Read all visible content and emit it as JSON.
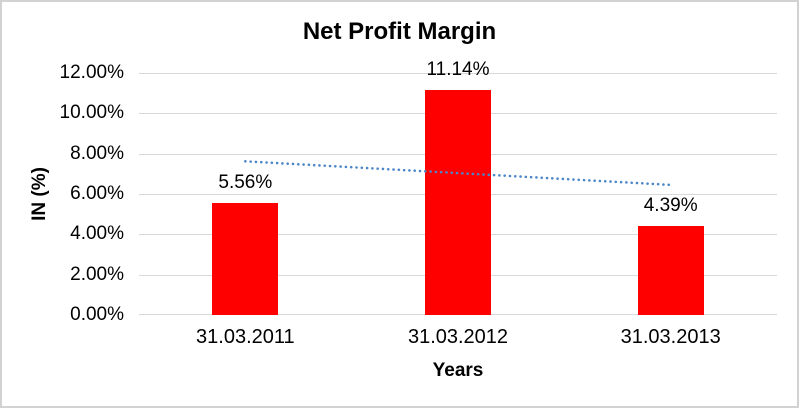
{
  "window": {
    "background": "#ffffff",
    "border_color": "#d2d2d2"
  },
  "chart_data": {
    "type": "bar",
    "title": "Net Profit Margin",
    "xlabel": "Years",
    "ylabel": "IN (%)",
    "categories": [
      "31.03.2011",
      "31.03.2012",
      "31.03.2013"
    ],
    "values": [
      5.56,
      11.14,
      4.39
    ],
    "data_labels": [
      "5.56%",
      "11.14%",
      "4.39%"
    ],
    "ylim": [
      0,
      12
    ],
    "ytick_step": 2,
    "ytick_labels": [
      "0.00%",
      "2.00%",
      "4.00%",
      "6.00%",
      "8.00%",
      "10.00%",
      "12.00%"
    ],
    "grid": true,
    "legend": "none",
    "bar_color": "#ff0000",
    "gridline_color": "#d9d9d9",
    "text_color": "#000000",
    "trendline": {
      "type": "linear",
      "style": "dotted",
      "color": "#4a86c8",
      "start_value": 7.62,
      "end_value": 6.45
    }
  }
}
